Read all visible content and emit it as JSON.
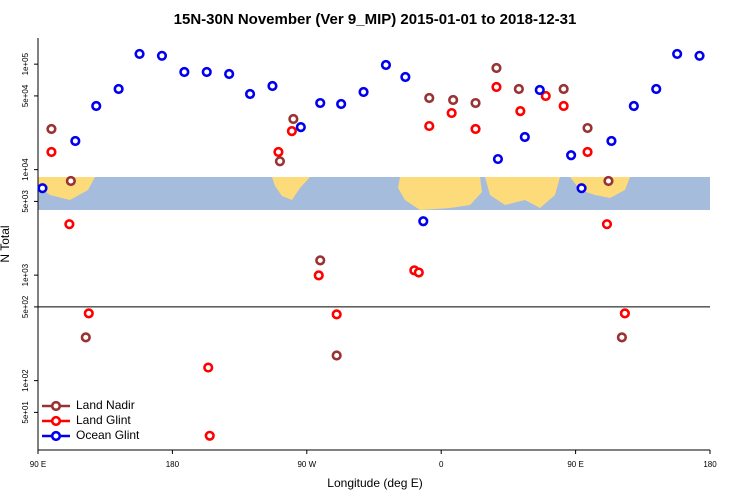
{
  "chart_data": {
    "type": "scatter",
    "title": "15N-30N November (Ver 9_MIP)   2015-01-01 to 2018-12-31",
    "x_label": "Longitude (deg E)",
    "y_label": "N Total",
    "xlim": [
      90,
      540
    ],
    "xticks": [
      {
        "value": 90,
        "label": "90 E"
      },
      180,
      {
        "value": 270,
        "label": "90 W"
      },
      {
        "value": 360,
        "label": "0"
      },
      {
        "value": 450,
        "label": "90 E"
      },
      {
        "value": 540,
        "label": "180"
      }
    ],
    "ylim": [
      22,
      177000
    ],
    "log_y": true,
    "yticks": [
      {
        "value": 50,
        "label": "5e+01"
      },
      {
        "value": 100,
        "label": "1e+02"
      },
      {
        "value": 500,
        "label": "5e+02"
      },
      {
        "value": 1000,
        "label": "1e+03"
      },
      {
        "value": 5000,
        "label": "5e+03"
      },
      {
        "value": 10000,
        "label": "1e+04"
      },
      {
        "value": 50000,
        "label": "5e+04"
      },
      {
        "value": 100000,
        "label": "1e+05"
      }
    ],
    "hline": 500,
    "legend": "bottom-left",
    "series": [
      {
        "name": "Land Nadir",
        "color": "#993333",
        "x": [
          99,
          112,
          122,
          252,
          261,
          279,
          290,
          352,
          368,
          383,
          397,
          412,
          442,
          458,
          472,
          481
        ],
        "values": [
          24300,
          7800,
          257,
          12000,
          30200,
          1380,
          173,
          47800,
          45700,
          42800,
          92000,
          58100,
          58100,
          24800,
          7800,
          257
        ]
      },
      {
        "name": "Land Glint",
        "color": "#ff0000",
        "x": [
          99,
          111,
          124,
          204,
          205,
          251,
          260,
          278,
          290,
          342,
          345,
          352,
          367,
          383,
          397,
          413,
          430,
          442,
          458,
          471,
          483
        ],
        "values": [
          14700,
          3040,
          434,
          133,
          30,
          14700,
          23200,
          995,
          425,
          1110,
          1060,
          25900,
          34400,
          24300,
          60700,
          35900,
          49900,
          40100,
          14700,
          3040,
          434
        ]
      },
      {
        "name": "Ocean Glint",
        "color": "#0000ee",
        "x": [
          93,
          115,
          129,
          144,
          158,
          173,
          188,
          203,
          218,
          232,
          247,
          266,
          279,
          293,
          308,
          323,
          336,
          348,
          398,
          416,
          426,
          447,
          454,
          474,
          489,
          504,
          518,
          533
        ],
        "values": [
          6670,
          18700,
          40100,
          58100,
          125000,
          120000,
          84300,
          84300,
          80700,
          52100,
          62100,
          25300,
          42800,
          41900,
          54500,
          98200,
          75600,
          3240,
          12600,
          20400,
          56900,
          13700,
          6670,
          18700,
          40100,
          58100,
          125000,
          120000
        ]
      }
    ]
  }
}
